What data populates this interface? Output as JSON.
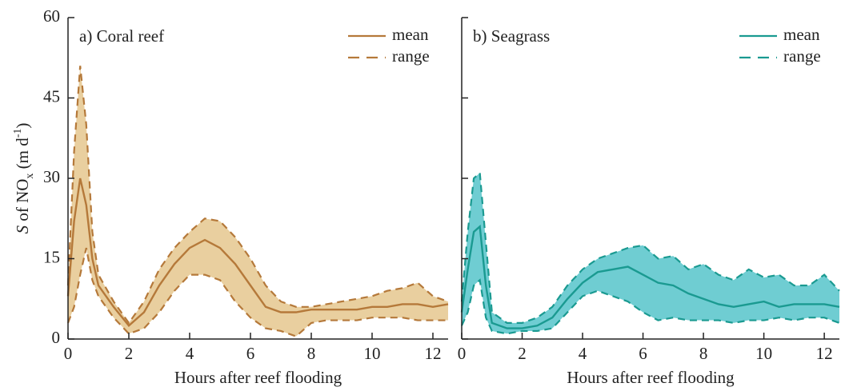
{
  "chart_data": [
    {
      "type": "band-line",
      "title": "a) Coral reef",
      "xlabel": "Hours after reef flooding",
      "ylabel": [
        "S",
        " of NO",
        "x",
        " (m d",
        "-1",
        ")"
      ],
      "xlim": [
        0,
        12.5
      ],
      "ylim": [
        0,
        60
      ],
      "xticks": [
        0,
        2,
        4,
        6,
        8,
        10,
        12
      ],
      "yticks": [
        0,
        15,
        30,
        45,
        60
      ],
      "yticklabels": true,
      "x": [
        0,
        0.2,
        0.4,
        0.6,
        0.8,
        1,
        1.5,
        2,
        2.5,
        3,
        3.5,
        4,
        4.5,
        5,
        5.5,
        6,
        6.5,
        7,
        7.5,
        8,
        8.5,
        9,
        9.5,
        10,
        10.5,
        11,
        11.5,
        12,
        12.5
      ],
      "series": [
        {
          "name": "mean",
          "color": "#b5793a",
          "values": [
            8,
            22,
            30,
            25,
            15,
            10,
            6,
            2.5,
            5,
            10,
            14,
            17,
            18.5,
            17,
            14,
            10,
            6,
            5,
            5,
            5.5,
            5.5,
            5.5,
            5.5,
            6,
            6,
            6.5,
            6.5,
            6,
            6.5
          ]
        },
        {
          "name": "range",
          "color": "#b5793a",
          "fill": "#e9cf9f",
          "upper": [
            10,
            35,
            51,
            40,
            20,
            12,
            7,
            3,
            7,
            13,
            17,
            20,
            22.5,
            22,
            19,
            15,
            10,
            7,
            6,
            6,
            6.5,
            7,
            7.5,
            8,
            9,
            9.5,
            10.5,
            8,
            7
          ],
          "lower": [
            3,
            6,
            12,
            17,
            11,
            8,
            4,
            1,
            2,
            5,
            9,
            12,
            12,
            11,
            7,
            4,
            2,
            1.5,
            0.5,
            3,
            3.5,
            3.5,
            3.5,
            4,
            4,
            4,
            3.5,
            3.5,
            3.5
          ]
        }
      ]
    },
    {
      "type": "band-line",
      "title": "b) Seagrass",
      "xlabel": "Hours after reef flooding",
      "xlim": [
        0,
        12.5
      ],
      "ylim": [
        0,
        60
      ],
      "xticks": [
        0,
        2,
        4,
        6,
        8,
        10,
        12
      ],
      "yticks": [
        0,
        15,
        30,
        45,
        60
      ],
      "yticklabels": false,
      "x": [
        0,
        0.2,
        0.4,
        0.6,
        0.8,
        1,
        1.5,
        2,
        2.5,
        3,
        3.5,
        4,
        4.5,
        5,
        5.5,
        6,
        6.5,
        7,
        7.5,
        8,
        8.5,
        9,
        9.5,
        10,
        10.5,
        11,
        11.5,
        12,
        12.5
      ],
      "series": [
        {
          "name": "mean",
          "color": "#1a9a91",
          "values": [
            5,
            13,
            20,
            21,
            10,
            3,
            2,
            2,
            2.5,
            4,
            7.5,
            10.5,
            12.5,
            13,
            13.5,
            12,
            10.5,
            10,
            8.5,
            7.5,
            6.5,
            6,
            6.5,
            7,
            6,
            6.5,
            6.5,
            6.5,
            6
          ]
        },
        {
          "name": "range",
          "color": "#1a9a91",
          "fill": "#6fcdd2",
          "upper": [
            7,
            20,
            30,
            31,
            18,
            5,
            3,
            3,
            4,
            6,
            10,
            13,
            15,
            16,
            17,
            17.5,
            15,
            15.5,
            13,
            14,
            12,
            11,
            13,
            11.5,
            12,
            10,
            10,
            12,
            9
          ],
          "lower": [
            2.5,
            5,
            10,
            11,
            4,
            1.5,
            1,
            1.5,
            1.5,
            2,
            5,
            8,
            9,
            8,
            7,
            5,
            3.5,
            4,
            3.5,
            3.5,
            3.5,
            3,
            3.5,
            3.5,
            4,
            3.5,
            4,
            4,
            3
          ]
        }
      ]
    }
  ]
}
